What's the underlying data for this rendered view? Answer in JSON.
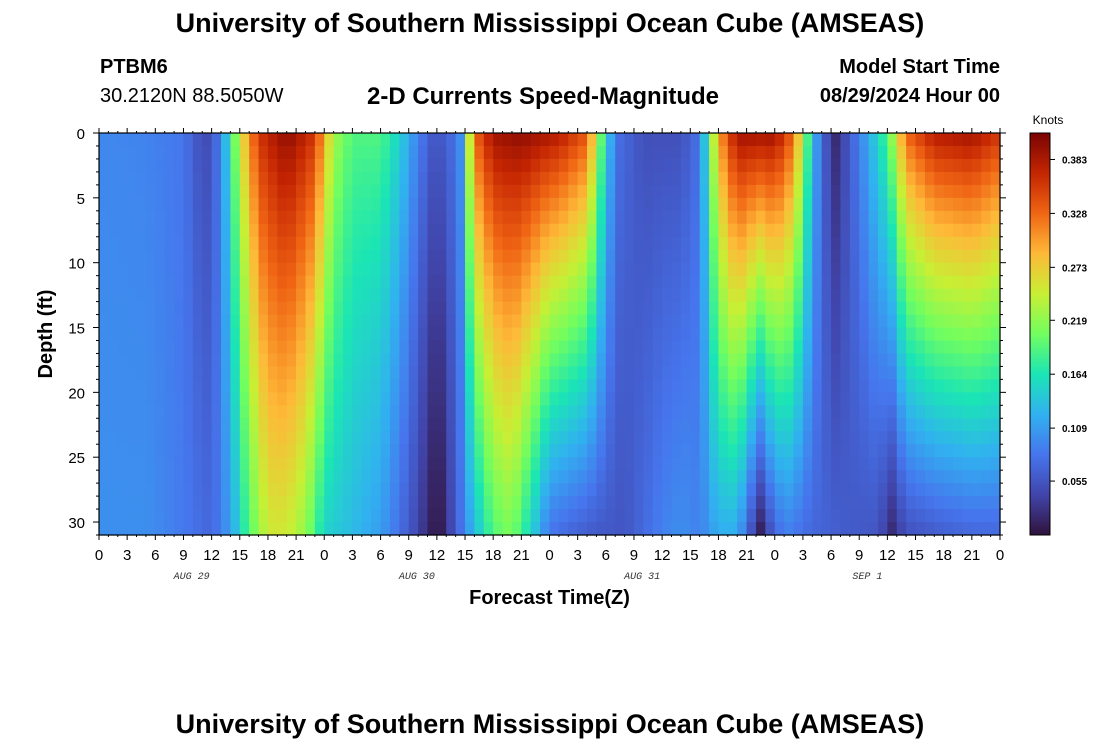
{
  "header": {
    "title": "University of Southern Mississippi Ocean Cube (AMSEAS)",
    "station_id": "PTBM6",
    "station_coords": "30.2120N  88.5050W",
    "plot_title": "2-D Currents Speed-Magnitude",
    "model_start_label": "Model Start Time",
    "model_start_value": "08/29/2024 Hour 00"
  },
  "footer": {
    "title": "University of Southern Mississippi Ocean Cube (AMSEAS)"
  },
  "chart_data": {
    "type": "heatmap",
    "title": "2-D Currents Speed-Magnitude",
    "xlabel": "Forecast Time(Z)",
    "ylabel": "Depth (ft)",
    "x_tick_labels": [
      "0",
      "3",
      "6",
      "9",
      "12",
      "15",
      "18",
      "21",
      "0",
      "3",
      "6",
      "9",
      "12",
      "15",
      "18",
      "21",
      "0",
      "3",
      "6",
      "9",
      "12",
      "15",
      "18",
      "21",
      "0",
      "3",
      "6",
      "9",
      "12",
      "15",
      "18",
      "21",
      "0"
    ],
    "x_hours_range": [
      0,
      96
    ],
    "day_labels": [
      {
        "label": "AUG 29",
        "hour": 12
      },
      {
        "label": "AUG 30",
        "hour": 36
      },
      {
        "label": "AUG 31",
        "hour": 60
      },
      {
        "label": "SEP 1",
        "hour": 84
      }
    ],
    "y_ticks": [
      0,
      5,
      10,
      15,
      20,
      25,
      30
    ],
    "y_range": [
      0,
      31
    ],
    "colorbar": {
      "unit": "Knots",
      "ticks": [
        0.055,
        0.109,
        0.164,
        0.219,
        0.273,
        0.328,
        0.383
      ],
      "range": [
        0.0,
        0.41
      ]
    },
    "surface_speed_profile": [
      {
        "hour": 0,
        "speed": 0.095
      },
      {
        "hour": 5,
        "speed": 0.092
      },
      {
        "hour": 9,
        "speed": 0.082
      },
      {
        "hour": 10.5,
        "speed": 0.055
      },
      {
        "hour": 12,
        "speed": 0.045
      },
      {
        "hour": 13.5,
        "speed": 0.13
      },
      {
        "hour": 15,
        "speed": 0.25
      },
      {
        "hour": 17,
        "speed": 0.36
      },
      {
        "hour": 20,
        "speed": 0.4
      },
      {
        "hour": 23,
        "speed": 0.36
      },
      {
        "hour": 25,
        "speed": 0.23
      },
      {
        "hour": 27,
        "speed": 0.19
      },
      {
        "hour": 30,
        "speed": 0.19
      },
      {
        "hour": 32,
        "speed": 0.15
      },
      {
        "hour": 34,
        "speed": 0.09
      },
      {
        "hour": 35.5,
        "speed": 0.06
      },
      {
        "hour": 37,
        "speed": 0.06
      },
      {
        "hour": 38.5,
        "speed": 0.1
      },
      {
        "hour": 40,
        "speed": 0.33
      },
      {
        "hour": 42,
        "speed": 0.39
      },
      {
        "hour": 45,
        "speed": 0.4
      },
      {
        "hour": 49,
        "speed": 0.38
      },
      {
        "hour": 52,
        "speed": 0.34
      },
      {
        "hour": 53.5,
        "speed": 0.2
      },
      {
        "hour": 55,
        "speed": 0.08
      },
      {
        "hour": 58,
        "speed": 0.05
      },
      {
        "hour": 62,
        "speed": 0.05
      },
      {
        "hour": 64,
        "speed": 0.08
      },
      {
        "hour": 66,
        "speed": 0.3
      },
      {
        "hour": 68,
        "speed": 0.39
      },
      {
        "hour": 72,
        "speed": 0.39
      },
      {
        "hour": 74,
        "speed": 0.33
      },
      {
        "hour": 76,
        "speed": 0.14
      },
      {
        "hour": 77,
        "speed": 0.07
      },
      {
        "hour": 78.5,
        "speed": 0.02
      },
      {
        "hour": 80,
        "speed": 0.06
      },
      {
        "hour": 82,
        "speed": 0.12
      },
      {
        "hour": 84,
        "speed": 0.19
      },
      {
        "hour": 86,
        "speed": 0.33
      },
      {
        "hour": 89,
        "speed": 0.38
      },
      {
        "hour": 93,
        "speed": 0.39
      },
      {
        "hour": 96,
        "speed": 0.36
      }
    ],
    "bottom_speed_profile": [
      {
        "hour": 0,
        "speed": 0.1
      },
      {
        "hour": 5,
        "speed": 0.1
      },
      {
        "hour": 9,
        "speed": 0.085
      },
      {
        "hour": 12,
        "speed": 0.07
      },
      {
        "hour": 14,
        "speed": 0.11
      },
      {
        "hour": 16,
        "speed": 0.19
      },
      {
        "hour": 18,
        "speed": 0.25
      },
      {
        "hour": 20,
        "speed": 0.25
      },
      {
        "hour": 22,
        "speed": 0.22
      },
      {
        "hour": 24,
        "speed": 0.15
      },
      {
        "hour": 27,
        "speed": 0.13
      },
      {
        "hour": 30,
        "speed": 0.11
      },
      {
        "hour": 33,
        "speed": 0.06
      },
      {
        "hour": 35.5,
        "speed": 0.01
      },
      {
        "hour": 36.5,
        "speed": 0.01
      },
      {
        "hour": 38,
        "speed": 0.06
      },
      {
        "hour": 40,
        "speed": 0.13
      },
      {
        "hour": 42,
        "speed": 0.19
      },
      {
        "hour": 44,
        "speed": 0.21
      },
      {
        "hour": 46,
        "speed": 0.15
      },
      {
        "hour": 48,
        "speed": 0.08
      },
      {
        "hour": 52,
        "speed": 0.06
      },
      {
        "hour": 56,
        "speed": 0.055
      },
      {
        "hour": 60,
        "speed": 0.09
      },
      {
        "hour": 62,
        "speed": 0.1
      },
      {
        "hour": 64,
        "speed": 0.09
      },
      {
        "hour": 66,
        "speed": 0.12
      },
      {
        "hour": 68,
        "speed": 0.12
      },
      {
        "hour": 69.5,
        "speed": 0.05
      },
      {
        "hour": 70.5,
        "speed": 0.01
      },
      {
        "hour": 71.5,
        "speed": 0.05
      },
      {
        "hour": 73,
        "speed": 0.09
      },
      {
        "hour": 76,
        "speed": 0.07
      },
      {
        "hour": 80,
        "speed": 0.06
      },
      {
        "hour": 83,
        "speed": 0.055
      },
      {
        "hour": 84.5,
        "speed": 0.02
      },
      {
        "hour": 86,
        "speed": 0.05
      },
      {
        "hour": 89,
        "speed": 0.06
      },
      {
        "hour": 93,
        "speed": 0.07
      },
      {
        "hour": 96,
        "speed": 0.07
      }
    ]
  }
}
